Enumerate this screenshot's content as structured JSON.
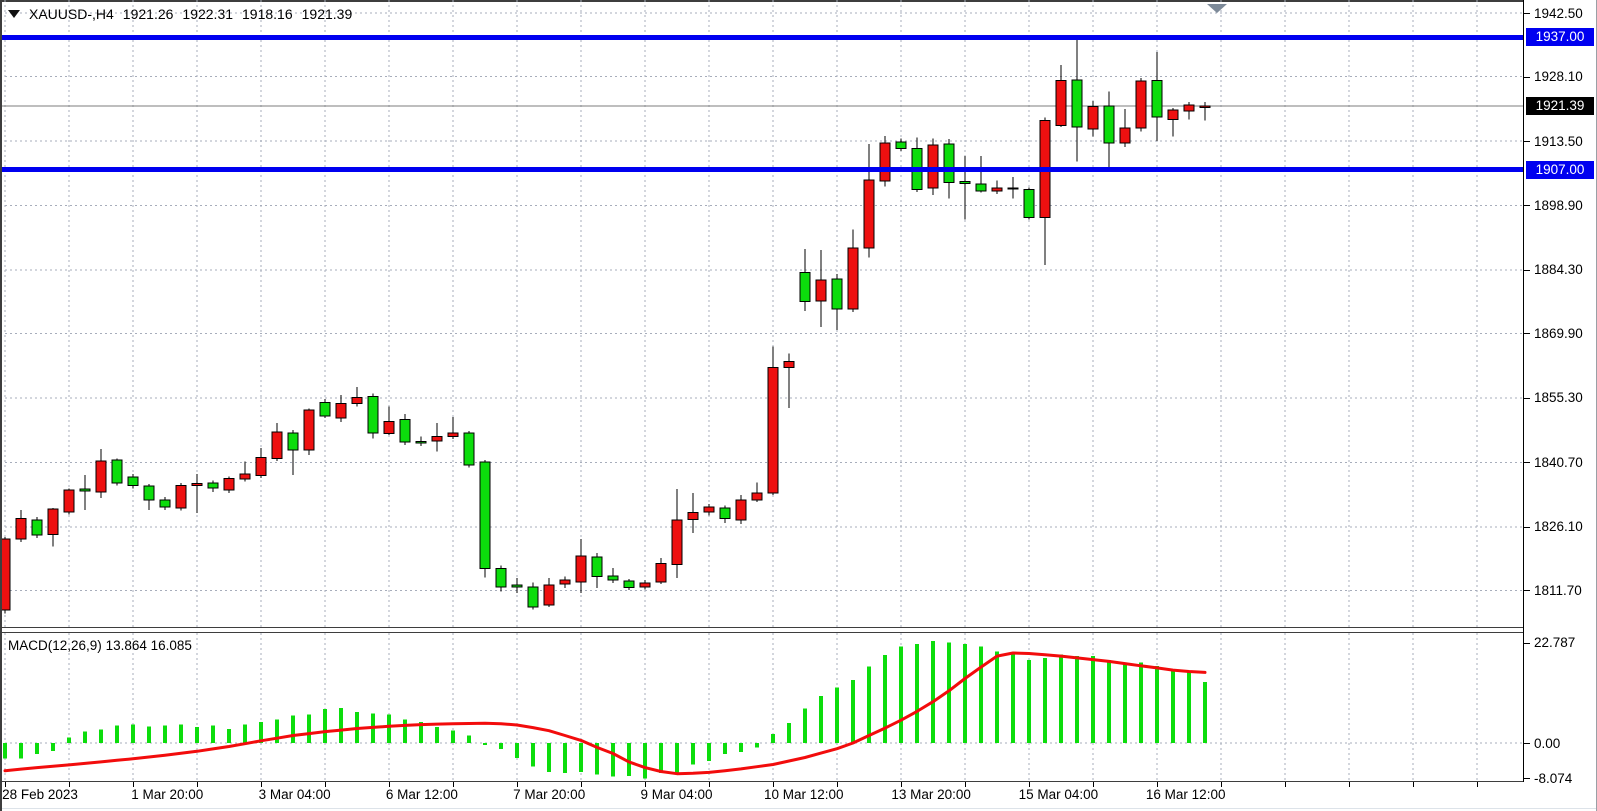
{
  "window": {
    "symbol_period": "XAUUSD-,H4",
    "ohlc": {
      "open": "1921.26",
      "high": "1922.31",
      "low": "1918.16",
      "close": "1921.39"
    }
  },
  "colors": {
    "bull_body": "#ee1010",
    "bear_body": "#0cdd0c",
    "candle_outline": "#000000",
    "grid": "#a7adbb",
    "level_blue": "#0000f0",
    "current_price_line": "#7d7d7d",
    "current_tag_bg": "#000000",
    "macd_histogram": "#0cdd0c",
    "macd_signal": "#f20c0c",
    "shift_marker": "#7d8a99",
    "background": "#ffffff"
  },
  "price_axis": {
    "labels": [
      {
        "text": "1942.50",
        "price": 1942.5,
        "type": "plain"
      },
      {
        "text": "1937.00",
        "price": 1937.0,
        "type": "level"
      },
      {
        "text": "1928.10",
        "price": 1928.1,
        "type": "plain"
      },
      {
        "text": "1921.39",
        "price": 1921.39,
        "type": "price"
      },
      {
        "text": "1913.50",
        "price": 1913.5,
        "type": "plain"
      },
      {
        "text": "1907.00",
        "price": 1907.0,
        "type": "level"
      },
      {
        "text": "1898.90",
        "price": 1898.9,
        "type": "plain"
      },
      {
        "text": "1884.30",
        "price": 1884.3,
        "type": "plain"
      },
      {
        "text": "1869.90",
        "price": 1869.9,
        "type": "plain"
      },
      {
        "text": "1855.30",
        "price": 1855.3,
        "type": "plain"
      },
      {
        "text": "1840.70",
        "price": 1840.7,
        "type": "plain"
      },
      {
        "text": "1826.10",
        "price": 1826.1,
        "type": "plain"
      },
      {
        "text": "1811.70",
        "price": 1811.7,
        "type": "plain"
      }
    ]
  },
  "time_axis": {
    "labels": [
      "28 Feb 2023",
      "1 Mar 20:00",
      "3 Mar 04:00",
      "6 Mar 12:00",
      "7 Mar 20:00",
      "9 Mar 04:00",
      "10 Mar 12:00",
      "13 Mar 20:00",
      "15 Mar 04:00",
      "16 Mar 12:00"
    ]
  },
  "macd_panel": {
    "title": "MACD(12,26,9)",
    "value_main": "13.864",
    "value_signal": "16.085",
    "axis": [
      {
        "text": "22.787",
        "value": 22.787
      },
      {
        "text": "0.00",
        "value": 0
      },
      {
        "text": "-8.074",
        "value": -8.074
      }
    ]
  },
  "chart_data": {
    "type": "candlestick-with-macd",
    "title": "XAUUSD- H4",
    "levels": [
      1937.0,
      1907.0
    ],
    "last_price": 1921.39,
    "y_ticks": [
      1942.5,
      1928.1,
      1913.5,
      1898.9,
      1884.3,
      1869.9,
      1855.3,
      1840.7,
      1826.1,
      1811.7
    ],
    "x_labels": [
      "28 Feb 2023",
      "1 Mar 20:00",
      "3 Mar 04:00",
      "6 Mar 12:00",
      "7 Mar 20:00",
      "9 Mar 04:00",
      "10 Mar 12:00",
      "13 Mar 20:00",
      "15 Mar 04:00",
      "16 Mar 12:00"
    ],
    "candles_ohlc": [
      [
        1807.2,
        1823.8,
        1806.5,
        1823.3
      ],
      [
        1823.3,
        1829.9,
        1822.7,
        1828.0
      ],
      [
        1827.6,
        1828.3,
        1823.5,
        1824.2
      ],
      [
        1824.4,
        1830.4,
        1821.6,
        1830.1
      ],
      [
        1829.5,
        1834.8,
        1828.9,
        1834.4
      ],
      [
        1834.6,
        1837.8,
        1829.9,
        1834.2
      ],
      [
        1834.0,
        1843.7,
        1832.6,
        1841.0
      ],
      [
        1841.2,
        1841.6,
        1835.4,
        1836.0
      ],
      [
        1837.4,
        1838.0,
        1834.8,
        1835.5
      ],
      [
        1835.3,
        1835.8,
        1829.9,
        1832.2
      ],
      [
        1832.2,
        1832.8,
        1829.9,
        1830.6
      ],
      [
        1830.3,
        1836.0,
        1829.8,
        1835.5
      ],
      [
        1835.5,
        1838.0,
        1829.2,
        1835.9
      ],
      [
        1836.0,
        1836.6,
        1834.0,
        1834.9
      ],
      [
        1834.4,
        1837.5,
        1833.8,
        1837.0
      ],
      [
        1836.9,
        1840.9,
        1836.3,
        1838.0
      ],
      [
        1837.7,
        1844.0,
        1837.2,
        1841.8
      ],
      [
        1841.6,
        1849.6,
        1841.0,
        1847.6
      ],
      [
        1847.4,
        1848.0,
        1837.8,
        1843.5
      ],
      [
        1843.5,
        1852.9,
        1842.4,
        1852.5
      ],
      [
        1854.3,
        1855.0,
        1850.7,
        1851.2
      ],
      [
        1850.7,
        1856.0,
        1849.8,
        1854.0
      ],
      [
        1854.0,
        1857.8,
        1853.4,
        1855.4
      ],
      [
        1855.6,
        1856.3,
        1846.1,
        1847.4
      ],
      [
        1847.2,
        1853.4,
        1846.9,
        1850.0
      ],
      [
        1850.4,
        1851.6,
        1844.6,
        1845.3
      ],
      [
        1845.4,
        1846.5,
        1844.4,
        1845.2
      ],
      [
        1845.5,
        1849.6,
        1843.1,
        1846.5
      ],
      [
        1846.5,
        1851.0,
        1846.0,
        1847.4
      ],
      [
        1847.4,
        1847.8,
        1839.5,
        1840.1
      ],
      [
        1840.8,
        1841.2,
        1814.6,
        1816.7
      ],
      [
        1816.7,
        1817.3,
        1811.4,
        1812.5
      ],
      [
        1812.9,
        1814.5,
        1811.1,
        1812.5
      ],
      [
        1812.5,
        1813.5,
        1807.3,
        1807.9
      ],
      [
        1808.4,
        1814.5,
        1807.9,
        1812.9
      ],
      [
        1813.1,
        1814.8,
        1812.2,
        1814.0
      ],
      [
        1813.6,
        1823.3,
        1811.1,
        1819.5
      ],
      [
        1819.3,
        1820.2,
        1812.2,
        1814.8
      ],
      [
        1814.9,
        1816.8,
        1813.4,
        1814.0
      ],
      [
        1813.8,
        1814.3,
        1811.8,
        1812.3
      ],
      [
        1812.4,
        1814.0,
        1811.9,
        1813.4
      ],
      [
        1813.6,
        1819.0,
        1813.1,
        1817.8
      ],
      [
        1817.6,
        1834.7,
        1814.5,
        1827.6
      ],
      [
        1827.8,
        1833.8,
        1824.7,
        1829.3
      ],
      [
        1829.5,
        1831.3,
        1828.7,
        1830.6
      ],
      [
        1830.3,
        1830.9,
        1826.9,
        1828.0
      ],
      [
        1827.6,
        1833.3,
        1826.7,
        1832.2
      ],
      [
        1832.2,
        1836.1,
        1831.7,
        1833.8
      ],
      [
        1833.8,
        1866.9,
        1833.3,
        1862.2
      ],
      [
        1862.2,
        1865.4,
        1853.0,
        1863.5
      ],
      [
        1883.7,
        1889.0,
        1875.0,
        1877.1
      ],
      [
        1877.3,
        1888.8,
        1871.4,
        1882.0
      ],
      [
        1882.2,
        1883.4,
        1870.7,
        1875.4
      ],
      [
        1875.4,
        1893.5,
        1874.8,
        1889.3
      ],
      [
        1889.3,
        1912.8,
        1887.1,
        1904.7
      ],
      [
        1904.4,
        1914.6,
        1903.2,
        1913.1
      ],
      [
        1913.3,
        1914.1,
        1911.2,
        1911.8
      ],
      [
        1911.8,
        1914.3,
        1902.0,
        1902.5
      ],
      [
        1902.8,
        1914.1,
        1901.3,
        1912.6
      ],
      [
        1912.8,
        1913.9,
        1900.5,
        1904.1
      ],
      [
        1904.3,
        1910.1,
        1895.7,
        1903.9
      ],
      [
        1903.8,
        1910.1,
        1901.8,
        1902.2
      ],
      [
        1902.2,
        1904.5,
        1901.5,
        1902.8
      ],
      [
        1902.7,
        1905.3,
        1900.5,
        1902.9
      ],
      [
        1902.5,
        1903.0,
        1895.7,
        1896.2
      ],
      [
        1896.2,
        1918.8,
        1885.4,
        1918.1
      ],
      [
        1917.0,
        1930.7,
        1916.7,
        1927.2
      ],
      [
        1927.3,
        1937.3,
        1908.8,
        1916.7
      ],
      [
        1916.2,
        1922.6,
        1914.5,
        1921.3
      ],
      [
        1921.4,
        1924.7,
        1907.4,
        1913.0
      ],
      [
        1913.0,
        1920.7,
        1912.1,
        1916.5
      ],
      [
        1916.4,
        1927.8,
        1915.6,
        1927.1
      ],
      [
        1927.2,
        1933.7,
        1913.5,
        1918.9
      ],
      [
        1918.4,
        1921.0,
        1914.5,
        1920.5
      ],
      [
        1920.3,
        1922.3,
        1918.4,
        1921.7
      ],
      [
        1921.26,
        1922.31,
        1918.16,
        1921.39
      ]
    ],
    "macd": {
      "histogram": [
        -3.5,
        -3.5,
        -2.5,
        -1.8,
        1.2,
        2.6,
        3.1,
        4.0,
        4.2,
        3.8,
        4.0,
        4.2,
        3.6,
        4.0,
        3.2,
        4.2,
        4.8,
        5.3,
        6.3,
        6.5,
        7.7,
        8.0,
        7.1,
        6.7,
        6.5,
        5.3,
        4.8,
        3.6,
        2.8,
        1.7,
        -0.5,
        -1.4,
        -3.4,
        -5.3,
        -6.6,
        -6.8,
        -6.6,
        -7.2,
        -7.6,
        -7.5,
        -8.07,
        -6.8,
        -6.8,
        -4.9,
        -4.1,
        -2.5,
        -2.0,
        -1.0,
        2.1,
        4.5,
        7.9,
        10.7,
        12.6,
        14.3,
        17.4,
        20.1,
        22.0,
        22.6,
        23.2,
        22.9,
        22.6,
        22.0,
        20.8,
        20.4,
        18.9,
        19.4,
        20.2,
        19.8,
        19.8,
        18.9,
        18.3,
        18.3,
        17.6,
        16.9,
        16.1,
        13.864
      ],
      "signal": [
        -6.3,
        -5.95,
        -5.6,
        -5.3,
        -5.0,
        -4.65,
        -4.3,
        -3.95,
        -3.6,
        -3.2,
        -2.8,
        -2.35,
        -1.9,
        -1.35,
        -0.8,
        -0.15,
        0.5,
        1.1,
        1.7,
        2.15,
        2.6,
        2.95,
        3.3,
        3.55,
        3.8,
        4.0,
        4.2,
        4.3,
        4.4,
        4.45,
        4.5,
        4.4,
        4.1,
        3.5,
        2.8,
        1.7,
        0.6,
        -1.0,
        -2.4,
        -4.3,
        -5.6,
        -6.5,
        -7.0,
        -6.9,
        -6.7,
        -6.3,
        -5.9,
        -5.4,
        -4.9,
        -4.1,
        -3.3,
        -2.3,
        -1.3,
        0.0,
        1.7,
        3.4,
        5.2,
        7.2,
        9.4,
        11.9,
        14.7,
        17.3,
        19.8,
        20.5,
        20.4,
        20.1,
        19.8,
        19.4,
        19.0,
        18.6,
        18.1,
        17.6,
        17.1,
        16.6,
        16.3,
        16.085
      ],
      "current_macd": 13.864,
      "current_signal": 16.085
    }
  }
}
